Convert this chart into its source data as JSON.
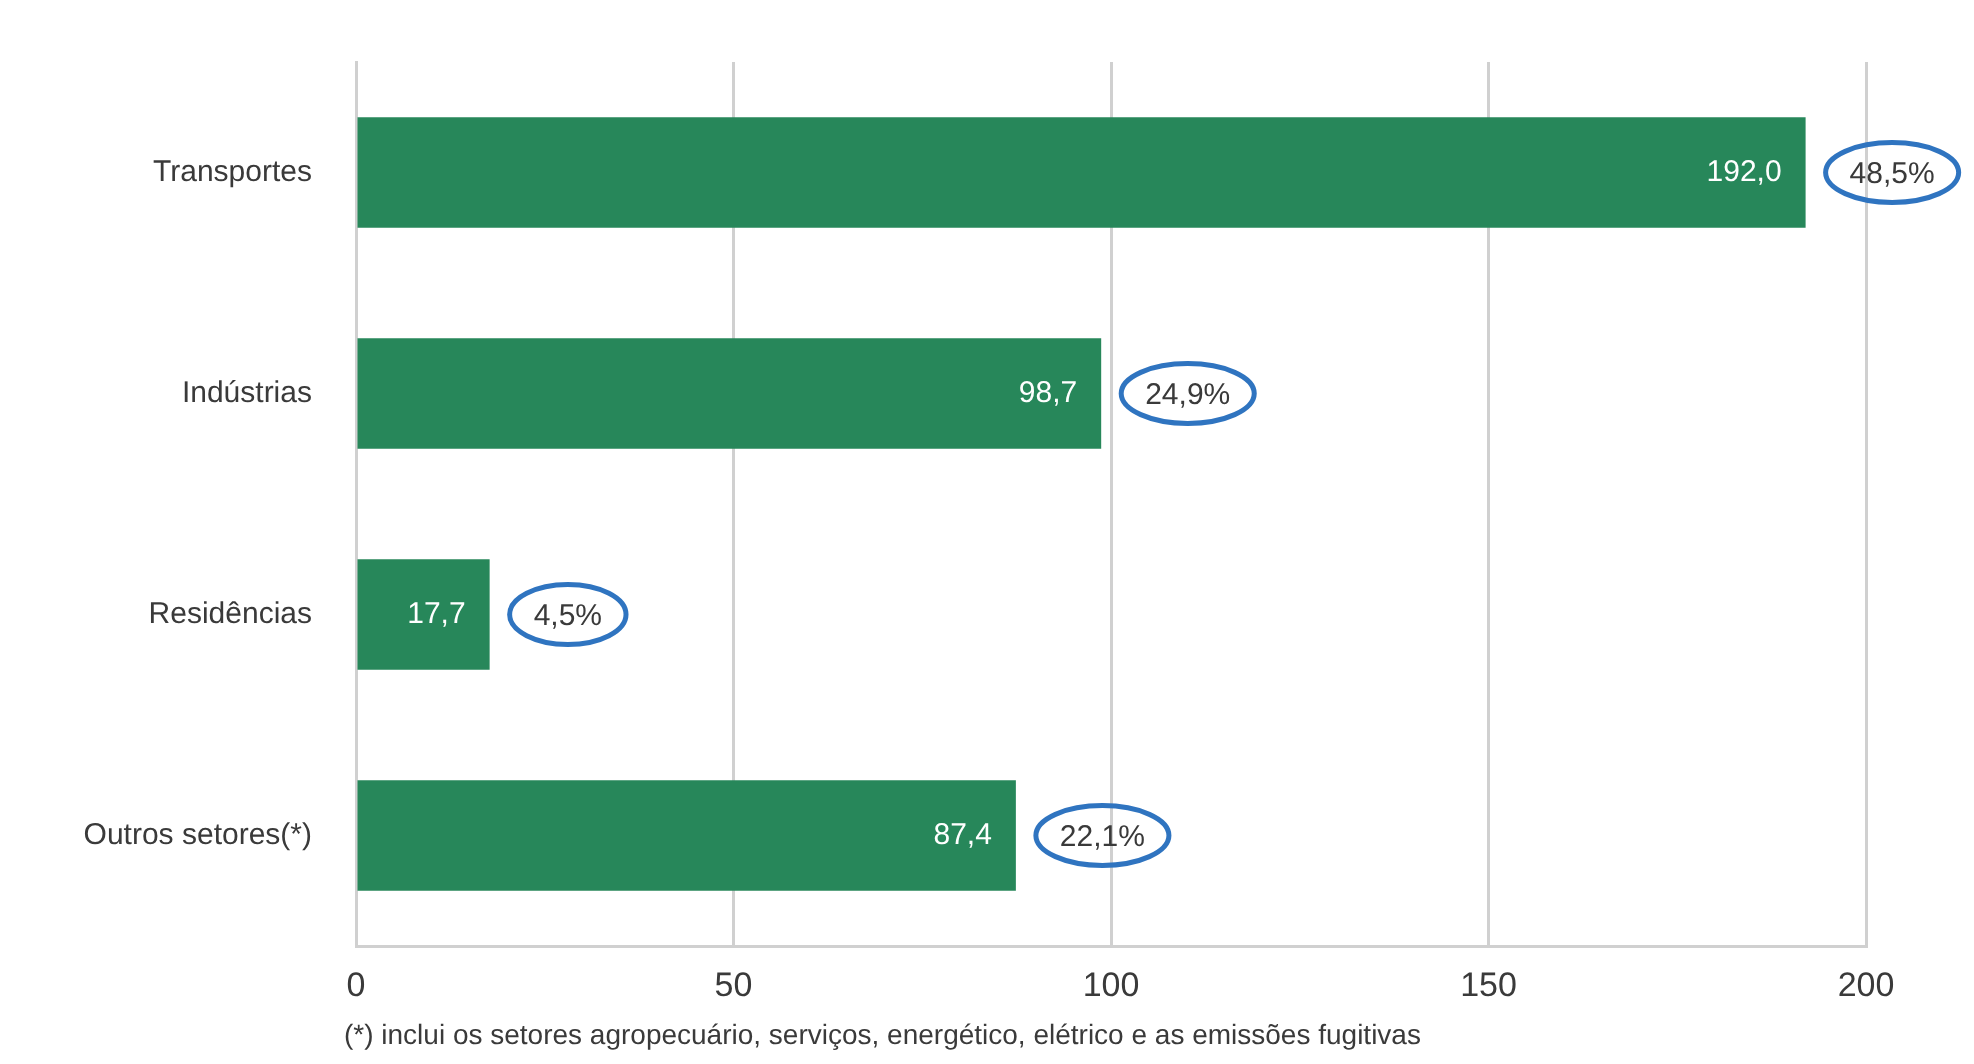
{
  "chart_data": {
    "type": "bar",
    "orientation": "horizontal",
    "categories": [
      "Transportes",
      "Indústrias",
      "Residências",
      "Outros setores(*)"
    ],
    "values": [
      192.0,
      98.7,
      17.7,
      87.4
    ],
    "color": "#27875a",
    "value_labels": [
      "192,0",
      "98,7",
      "17,7",
      "87,4"
    ],
    "xlim": [
      0,
      200
    ],
    "xticks": [
      0,
      50,
      100,
      150,
      200
    ],
    "grid": "x",
    "annotations": [
      {
        "text": "48,5%",
        "x": 192.0,
        "y": "Transportes"
      },
      {
        "text": "24,9%",
        "x": 98.7,
        "y": "Indústrias"
      },
      {
        "text": "4,5%",
        "x": 17.7,
        "y": "Residências"
      },
      {
        "text": "22,1%",
        "x": 87.4,
        "y": "Outros setores(*)"
      },
      "(*) inclui os setores agropecuário, serviços, energético, elétrico e as emissões fugitivas"
    ]
  }
}
